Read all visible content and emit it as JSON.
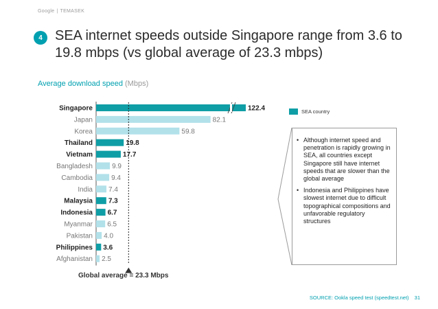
{
  "header": {
    "brand": "Google",
    "brand_sep": "|",
    "partner": "TEMASEK"
  },
  "slide": {
    "number": "4",
    "title": "SEA internet speeds outside Singapore range from 3.6 to 19.8 mbps (vs global average of 23.3 mbps)",
    "subtitle_main": "Average download speed",
    "subtitle_unit": "(Mbps)",
    "page_number": "31",
    "source": "SOURCE: Ookla speed test (speedtest.net)"
  },
  "colors": {
    "accent": "#00a0b0",
    "sea": "#0f9ea6",
    "other": "#b2e1ea",
    "subtitle": "#00a0b0"
  },
  "legend": {
    "label": "SEA country"
  },
  "notes": [
    "Although internet speed and penetration is rapidly growing in SEA, all countries except Singapore still have internet speeds that are slower than the global average",
    "Indonesia and Philippines have slowest internet due to difficult topographical compositions and unfavorable regulatory structures"
  ],
  "global_average": {
    "label": "Global average = 23.3 Mbps",
    "value": 23.3
  },
  "chart_data": {
    "type": "bar",
    "orientation": "horizontal",
    "axis_break": true,
    "categories": [
      "Singapore",
      "Japan",
      "Korea",
      "Thailand",
      "Vietnam",
      "Bangladesh",
      "Cambodia",
      "India",
      "Malaysia",
      "Indonesia",
      "Myanmar",
      "Pakistan",
      "Philippines",
      "Afghanistan"
    ],
    "values": [
      122.4,
      82.1,
      59.8,
      19.8,
      17.7,
      9.9,
      9.4,
      7.4,
      7.3,
      6.7,
      6.5,
      4.0,
      3.6,
      2.5
    ],
    "value_labels": [
      "122.4",
      "82.1",
      "59.8",
      "19.8",
      "17.7",
      "9.9",
      "9.4",
      "7.4",
      "7.3",
      "6.7",
      "6.5",
      "4.0",
      "3.6",
      "2.5"
    ],
    "sea_country": [
      true,
      false,
      false,
      true,
      true,
      false,
      false,
      false,
      true,
      true,
      false,
      false,
      true,
      false
    ],
    "reference_line": 23.3,
    "xlabel": "",
    "ylabel": ""
  }
}
